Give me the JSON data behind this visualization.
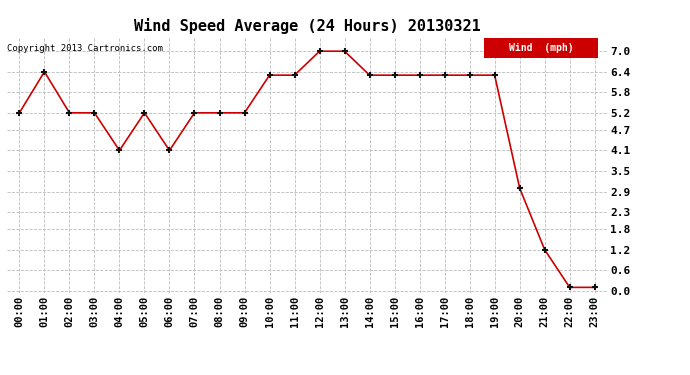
{
  "title": "Wind Speed Average (24 Hours) 20130321",
  "copyright_text": "Copyright 2013 Cartronics.com",
  "legend_label": "Wind  (mph)",
  "x_labels": [
    "00:00",
    "01:00",
    "02:00",
    "03:00",
    "04:00",
    "05:00",
    "06:00",
    "07:00",
    "08:00",
    "09:00",
    "10:00",
    "11:00",
    "12:00",
    "13:00",
    "14:00",
    "15:00",
    "16:00",
    "17:00",
    "18:00",
    "19:00",
    "20:00",
    "21:00",
    "22:00",
    "23:00"
  ],
  "y_values": [
    5.2,
    6.4,
    5.2,
    5.2,
    4.1,
    5.2,
    4.1,
    5.2,
    5.2,
    5.2,
    6.3,
    6.3,
    7.0,
    7.0,
    6.3,
    6.3,
    6.3,
    6.3,
    6.3,
    6.3,
    3.0,
    1.2,
    0.1,
    0.1
  ],
  "yticks": [
    0.0,
    0.6,
    1.2,
    1.8,
    2.3,
    2.9,
    3.5,
    4.1,
    4.7,
    5.2,
    5.8,
    6.4,
    7.0
  ],
  "ytick_labels": [
    "0.0",
    "0.6",
    "1.2",
    "1.8",
    "2.3",
    "2.9",
    "3.5",
    "4.1",
    "4.7",
    "5.2",
    "5.8",
    "6.4",
    "7.0"
  ],
  "ylim": [
    -0.05,
    7.4
  ],
  "line_color": "#cc0000",
  "marker_color": "#111111",
  "background_color": "#ffffff",
  "grid_color": "#bbbbbb",
  "legend_bg": "#cc0000",
  "legend_text_color": "#ffffff",
  "title_fontsize": 11,
  "tick_fontsize": 7.5,
  "copyright_fontsize": 6.5,
  "figsize": [
    6.9,
    3.75
  ],
  "dpi": 100
}
